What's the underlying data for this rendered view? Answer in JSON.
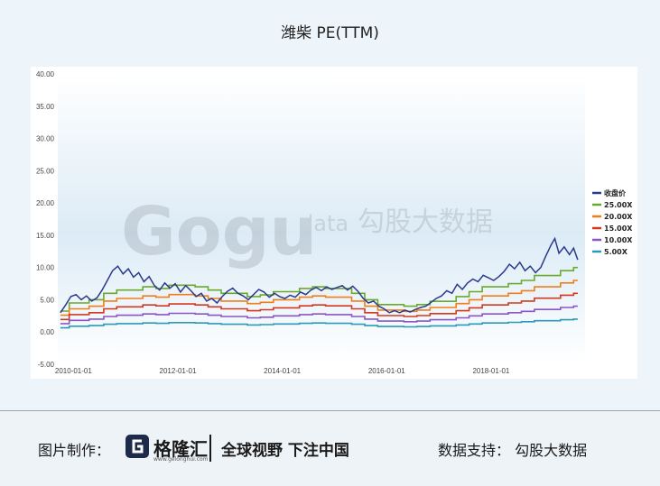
{
  "title": "潍柴 PE(TTM)",
  "watermark": {
    "text_latin": "Gogu",
    "text_data": "data",
    "text_cn": "勾股大数据"
  },
  "footer": {
    "made_by_label": "图片制作：",
    "logo_name": "格隆汇",
    "logo_url": "www.gelonghui.com",
    "slogan": "全球视野 下注中国",
    "data_support": "数据支持：  勾股大数据"
  },
  "chart_data": {
    "type": "line",
    "ylim": [
      -5,
      40
    ],
    "y_ticks": [
      "-5.00",
      "0.00",
      "5.00",
      "10.00",
      "15.00",
      "20.00",
      "25.00",
      "30.00",
      "35.00",
      "40.00"
    ],
    "x_ticks": [
      {
        "label": "2010-01-01",
        "t": 2010.0
      },
      {
        "label": "2012-01-01",
        "t": 2012.0
      },
      {
        "label": "2014-01-01",
        "t": 2014.0
      },
      {
        "label": "2016-01-01",
        "t": 2016.0
      },
      {
        "label": "2018-01-01",
        "t": 2018.0
      }
    ],
    "x_range": [
      2009.7,
      2019.8
    ],
    "grid": false,
    "legend_position": "right",
    "close_color": "#2b3a8c",
    "eps_steps": [
      {
        "t": 2009.75,
        "eps": 0.13
      },
      {
        "t": 2009.92,
        "eps": 0.18
      },
      {
        "t": 2010.3,
        "eps": 0.2
      },
      {
        "t": 2010.58,
        "eps": 0.24
      },
      {
        "t": 2010.83,
        "eps": 0.26
      },
      {
        "t": 2011.33,
        "eps": 0.28
      },
      {
        "t": 2011.58,
        "eps": 0.27
      },
      {
        "t": 2011.83,
        "eps": 0.29
      },
      {
        "t": 2012.33,
        "eps": 0.28
      },
      {
        "t": 2012.58,
        "eps": 0.26
      },
      {
        "t": 2012.83,
        "eps": 0.24
      },
      {
        "t": 2013.33,
        "eps": 0.22
      },
      {
        "t": 2013.58,
        "eps": 0.23
      },
      {
        "t": 2013.83,
        "eps": 0.25
      },
      {
        "t": 2014.33,
        "eps": 0.27
      },
      {
        "t": 2014.58,
        "eps": 0.28
      },
      {
        "t": 2014.83,
        "eps": 0.27
      },
      {
        "t": 2015.33,
        "eps": 0.24
      },
      {
        "t": 2015.58,
        "eps": 0.2
      },
      {
        "t": 2015.83,
        "eps": 0.17
      },
      {
        "t": 2016.33,
        "eps": 0.16
      },
      {
        "t": 2016.58,
        "eps": 0.17
      },
      {
        "t": 2016.83,
        "eps": 0.19
      },
      {
        "t": 2017.33,
        "eps": 0.22
      },
      {
        "t": 2017.58,
        "eps": 0.25
      },
      {
        "t": 2017.83,
        "eps": 0.28
      },
      {
        "t": 2018.33,
        "eps": 0.3
      },
      {
        "t": 2018.58,
        "eps": 0.32
      },
      {
        "t": 2018.83,
        "eps": 0.35
      },
      {
        "t": 2019.33,
        "eps": 0.38
      },
      {
        "t": 2019.58,
        "eps": 0.4
      }
    ],
    "close": [
      {
        "t": 2009.75,
        "v": 3.0
      },
      {
        "t": 2009.85,
        "v": 4.2
      },
      {
        "t": 2009.95,
        "v": 5.5
      },
      {
        "t": 2010.05,
        "v": 5.8
      },
      {
        "t": 2010.15,
        "v": 5.0
      },
      {
        "t": 2010.25,
        "v": 5.6
      },
      {
        "t": 2010.35,
        "v": 4.8
      },
      {
        "t": 2010.45,
        "v": 5.3
      },
      {
        "t": 2010.55,
        "v": 6.5
      },
      {
        "t": 2010.65,
        "v": 8.0
      },
      {
        "t": 2010.75,
        "v": 9.5
      },
      {
        "t": 2010.85,
        "v": 10.2
      },
      {
        "t": 2010.95,
        "v": 9.0
      },
      {
        "t": 2011.05,
        "v": 9.8
      },
      {
        "t": 2011.15,
        "v": 8.5
      },
      {
        "t": 2011.25,
        "v": 9.2
      },
      {
        "t": 2011.35,
        "v": 7.8
      },
      {
        "t": 2011.45,
        "v": 8.6
      },
      {
        "t": 2011.55,
        "v": 7.2
      },
      {
        "t": 2011.65,
        "v": 6.5
      },
      {
        "t": 2011.75,
        "v": 7.6
      },
      {
        "t": 2011.85,
        "v": 6.8
      },
      {
        "t": 2011.95,
        "v": 7.5
      },
      {
        "t": 2012.05,
        "v": 6.2
      },
      {
        "t": 2012.15,
        "v": 7.2
      },
      {
        "t": 2012.25,
        "v": 6.4
      },
      {
        "t": 2012.35,
        "v": 5.5
      },
      {
        "t": 2012.45,
        "v": 6.0
      },
      {
        "t": 2012.55,
        "v": 4.8
      },
      {
        "t": 2012.65,
        "v": 5.2
      },
      {
        "t": 2012.75,
        "v": 4.5
      },
      {
        "t": 2012.85,
        "v": 5.5
      },
      {
        "t": 2012.95,
        "v": 6.3
      },
      {
        "t": 2013.05,
        "v": 6.8
      },
      {
        "t": 2013.15,
        "v": 6.0
      },
      {
        "t": 2013.25,
        "v": 5.6
      },
      {
        "t": 2013.35,
        "v": 5.0
      },
      {
        "t": 2013.45,
        "v": 5.8
      },
      {
        "t": 2013.55,
        "v": 6.6
      },
      {
        "t": 2013.65,
        "v": 6.2
      },
      {
        "t": 2013.75,
        "v": 5.4
      },
      {
        "t": 2013.85,
        "v": 6.0
      },
      {
        "t": 2013.95,
        "v": 5.5
      },
      {
        "t": 2014.05,
        "v": 5.2
      },
      {
        "t": 2014.15,
        "v": 5.7
      },
      {
        "t": 2014.25,
        "v": 5.4
      },
      {
        "t": 2014.35,
        "v": 6.2
      },
      {
        "t": 2014.45,
        "v": 5.8
      },
      {
        "t": 2014.55,
        "v": 6.5
      },
      {
        "t": 2014.65,
        "v": 6.9
      },
      {
        "t": 2014.75,
        "v": 6.4
      },
      {
        "t": 2014.85,
        "v": 7.0
      },
      {
        "t": 2014.95,
        "v": 6.6
      },
      {
        "t": 2015.05,
        "v": 6.9
      },
      {
        "t": 2015.15,
        "v": 7.2
      },
      {
        "t": 2015.25,
        "v": 6.5
      },
      {
        "t": 2015.35,
        "v": 7.1
      },
      {
        "t": 2015.45,
        "v": 6.3
      },
      {
        "t": 2015.55,
        "v": 5.2
      },
      {
        "t": 2015.65,
        "v": 4.5
      },
      {
        "t": 2015.75,
        "v": 4.8
      },
      {
        "t": 2015.85,
        "v": 4.0
      },
      {
        "t": 2015.95,
        "v": 3.6
      },
      {
        "t": 2016.05,
        "v": 3.0
      },
      {
        "t": 2016.15,
        "v": 3.3
      },
      {
        "t": 2016.25,
        "v": 3.0
      },
      {
        "t": 2016.35,
        "v": 3.4
      },
      {
        "t": 2016.45,
        "v": 3.1
      },
      {
        "t": 2016.55,
        "v": 3.5
      },
      {
        "t": 2016.65,
        "v": 3.8
      },
      {
        "t": 2016.75,
        "v": 4.0
      },
      {
        "t": 2016.85,
        "v": 4.6
      },
      {
        "t": 2016.95,
        "v": 5.2
      },
      {
        "t": 2017.05,
        "v": 5.6
      },
      {
        "t": 2017.15,
        "v": 6.4
      },
      {
        "t": 2017.25,
        "v": 6.0
      },
      {
        "t": 2017.35,
        "v": 7.4
      },
      {
        "t": 2017.45,
        "v": 6.6
      },
      {
        "t": 2017.55,
        "v": 7.6
      },
      {
        "t": 2017.65,
        "v": 8.2
      },
      {
        "t": 2017.75,
        "v": 7.8
      },
      {
        "t": 2017.85,
        "v": 8.8
      },
      {
        "t": 2017.95,
        "v": 8.4
      },
      {
        "t": 2018.05,
        "v": 8.0
      },
      {
        "t": 2018.15,
        "v": 8.6
      },
      {
        "t": 2018.25,
        "v": 9.4
      },
      {
        "t": 2018.35,
        "v": 10.5
      },
      {
        "t": 2018.45,
        "v": 9.8
      },
      {
        "t": 2018.55,
        "v": 10.8
      },
      {
        "t": 2018.65,
        "v": 9.5
      },
      {
        "t": 2018.75,
        "v": 10.2
      },
      {
        "t": 2018.85,
        "v": 9.2
      },
      {
        "t": 2018.95,
        "v": 10.0
      },
      {
        "t": 2019.05,
        "v": 11.8
      },
      {
        "t": 2019.15,
        "v": 13.5
      },
      {
        "t": 2019.22,
        "v": 14.5
      },
      {
        "t": 2019.3,
        "v": 12.2
      },
      {
        "t": 2019.4,
        "v": 13.2
      },
      {
        "t": 2019.5,
        "v": 12.0
      },
      {
        "t": 2019.58,
        "v": 13.0
      },
      {
        "t": 2019.66,
        "v": 11.2
      }
    ],
    "series": [
      {
        "name": "收盘价",
        "type": "close",
        "color": "#2b3a8c"
      },
      {
        "name": "25.00X",
        "multiple": 25,
        "color": "#6aaa2a"
      },
      {
        "name": "20.00X",
        "multiple": 20,
        "color": "#f07e1a"
      },
      {
        "name": "15.00X",
        "multiple": 15,
        "color": "#d13a1f"
      },
      {
        "name": "10.00X",
        "multiple": 10,
        "color": "#8a55c4"
      },
      {
        "name": "5.00X",
        "multiple": 5,
        "color": "#2a9ab8"
      }
    ]
  }
}
